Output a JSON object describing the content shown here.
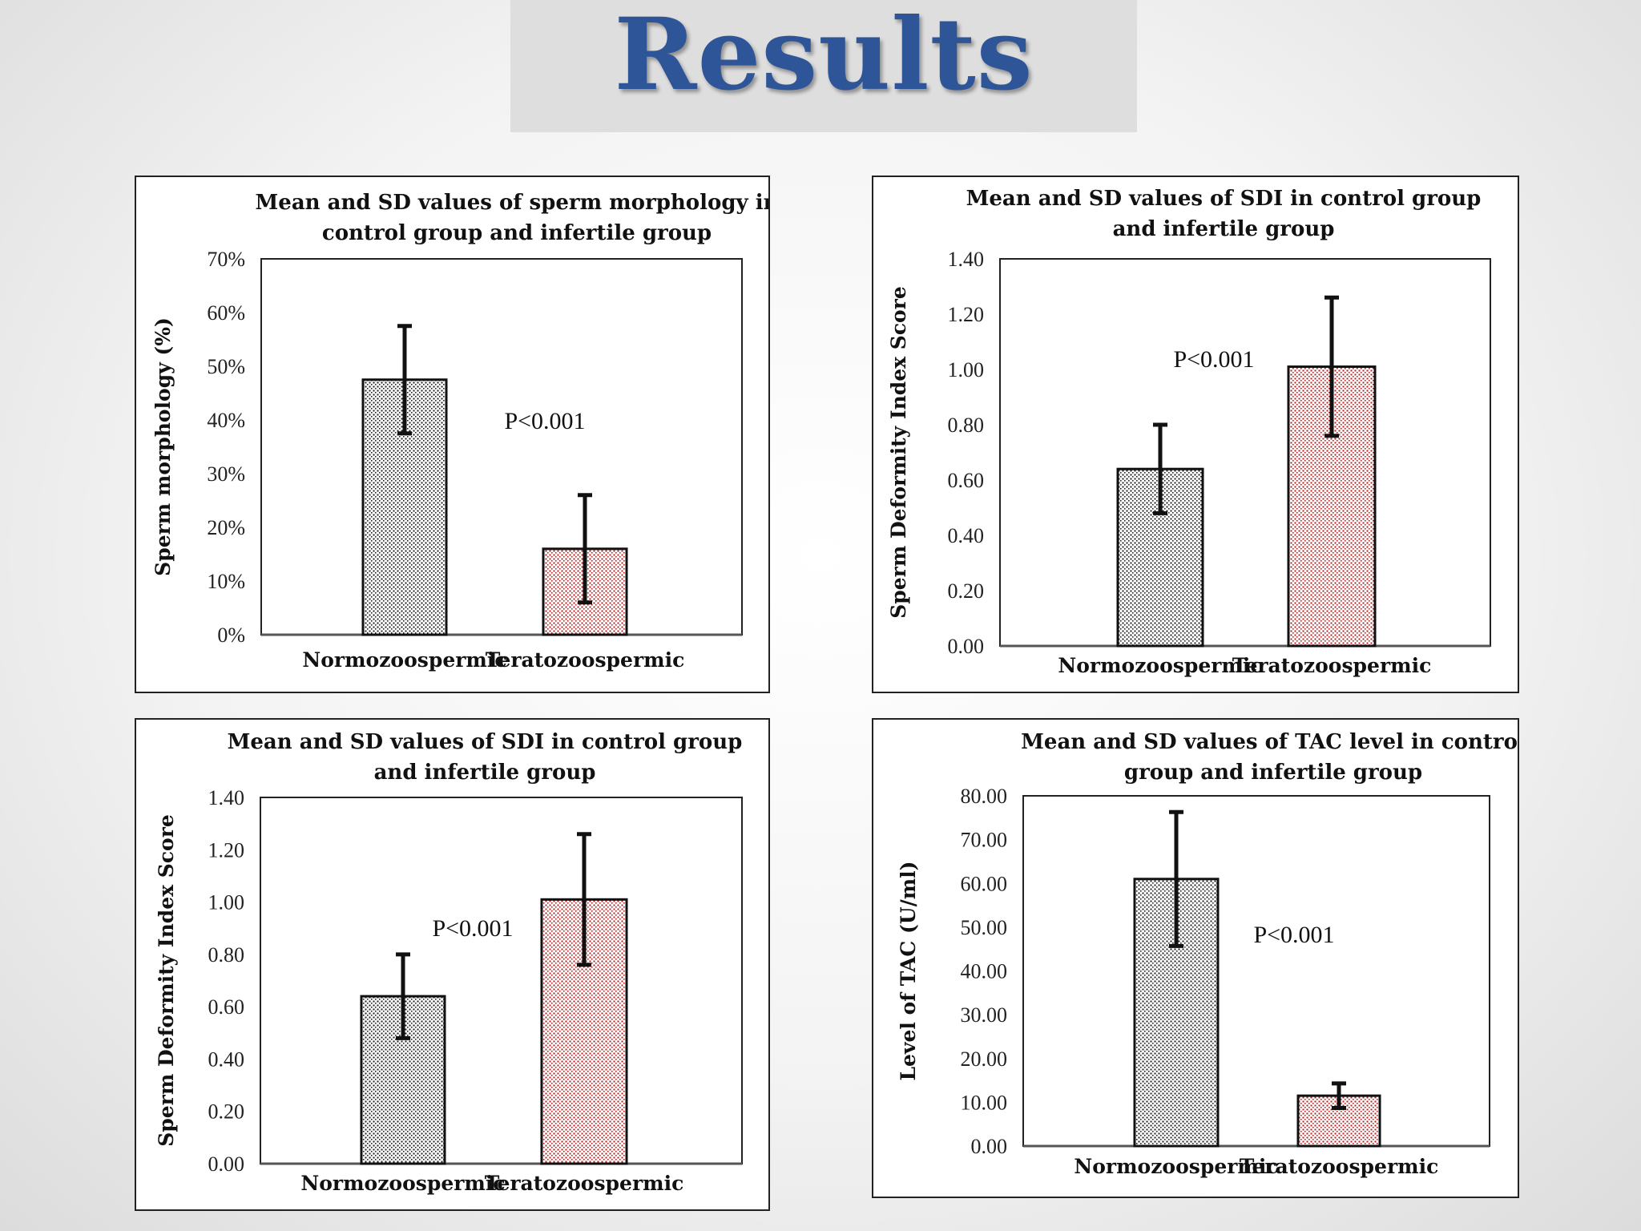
{
  "slide": {
    "title": "Results"
  },
  "chart_data": [
    {
      "type": "bar",
      "title_lines": [
        "Mean and SD values of sperm morphology in",
        "control group and infertile group"
      ],
      "categories": [
        "Normozoospermic",
        "Teratozoospermic"
      ],
      "values": [
        0.475,
        0.16
      ],
      "error_sd": [
        0.1,
        0.1
      ],
      "ylabel": "Sperm morphology (%)",
      "ylim": [
        0,
        0.7
      ],
      "yticks": [
        0,
        0.1,
        0.2,
        0.3,
        0.4,
        0.5,
        0.6,
        0.7
      ],
      "ytick_labels": [
        "0%",
        "10%",
        "20%",
        "30%",
        "40%",
        "50%",
        "60%",
        "70%"
      ],
      "annotation": "P<0.001",
      "bar_colors": [
        "#222222",
        "#b22222"
      ],
      "grid": false,
      "legend": "none"
    },
    {
      "type": "bar",
      "title_lines": [
        "Mean and SD values of SDI in control group",
        "and infertile group"
      ],
      "categories": [
        "Normozoospermic",
        "Teratozoospermic"
      ],
      "values": [
        0.64,
        1.01
      ],
      "error_sd": [
        0.16,
        0.25
      ],
      "ylabel": "Sperm Deformity Index Score",
      "ylim": [
        0,
        1.4
      ],
      "yticks": [
        0,
        0.2,
        0.4,
        0.6,
        0.8,
        1.0,
        1.2,
        1.4
      ],
      "ytick_labels": [
        "0.00",
        "0.20",
        "0.40",
        "0.60",
        "0.80",
        "1.00",
        "1.20",
        "1.40"
      ],
      "annotation": "P<0.001",
      "bar_colors": [
        "#222222",
        "#b22222"
      ],
      "grid": false,
      "legend": "none"
    },
    {
      "type": "bar",
      "title_lines": [
        "Mean and SD values of SDI in control group",
        "and infertile group"
      ],
      "categories": [
        "Normozoospermic",
        "Teratozoospermic"
      ],
      "values": [
        0.64,
        1.01
      ],
      "error_sd": [
        0.16,
        0.25
      ],
      "ylabel": "Sperm Deformity Index Score",
      "ylim": [
        0,
        1.4
      ],
      "yticks": [
        0,
        0.2,
        0.4,
        0.6,
        0.8,
        1.0,
        1.2,
        1.4
      ],
      "ytick_labels": [
        "0.00",
        "0.20",
        "0.40",
        "0.60",
        "0.80",
        "1.00",
        "1.20",
        "1.40"
      ],
      "annotation": "P<0.001",
      "bar_colors": [
        "#222222",
        "#b22222"
      ],
      "grid": false,
      "legend": "none"
    },
    {
      "type": "bar",
      "title_lines": [
        "Mean and SD values of TAC level in control",
        "group and infertile group"
      ],
      "categories": [
        "Normozoospermic",
        "Teratozoospermic"
      ],
      "values": [
        61.0,
        11.5
      ],
      "error_sd": [
        15.3,
        2.8
      ],
      "ylabel": "Level of TAC (U/ml)",
      "ylim": [
        0,
        80
      ],
      "yticks": [
        0,
        10,
        20,
        30,
        40,
        50,
        60,
        70,
        80
      ],
      "ytick_labels": [
        "0.00",
        "10.00",
        "20.00",
        "30.00",
        "40.00",
        "50.00",
        "60.00",
        "70.00",
        "80.00"
      ],
      "annotation": "P<0.001",
      "bar_colors": [
        "#222222",
        "#b22222"
      ],
      "grid": false,
      "legend": "none"
    }
  ]
}
